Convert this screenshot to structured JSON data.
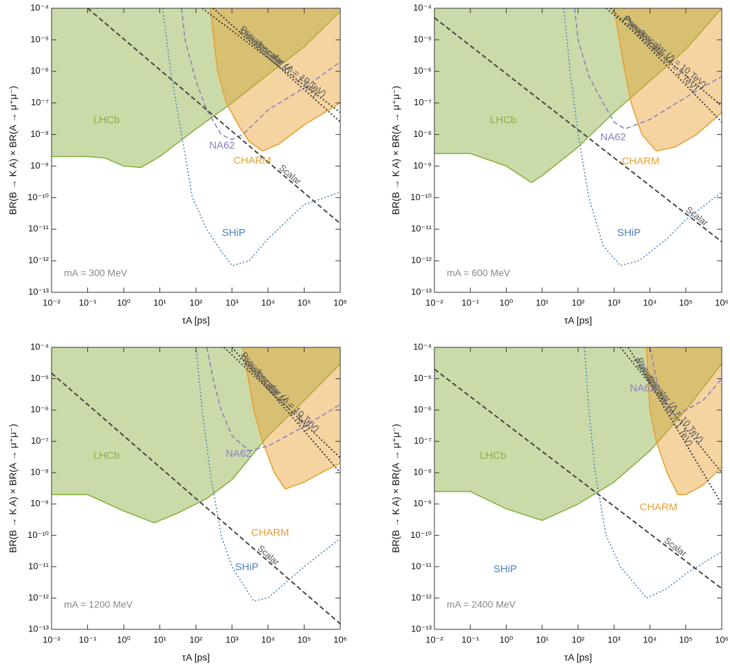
{
  "chart_data": [
    {
      "type": "line",
      "xscale": "log",
      "yscale": "log",
      "xlabel": "τA [ps]",
      "ylabel": "BR(B → K A) × BR(A → μ⁺μ⁻)",
      "annotation": "mA = 300 MeV",
      "xlim": [
        0.01,
        1000000
      ],
      "ylim": [
        1e-13,
        0.0001
      ],
      "xticks": [
        {
          "value": 0.01,
          "label": "10⁻²"
        },
        {
          "value": 0.1,
          "label": "10⁻¹"
        },
        {
          "value": 1,
          "label": "10⁰"
        },
        {
          "value": 10,
          "label": "10¹"
        },
        {
          "value": 100,
          "label": "10²"
        },
        {
          "value": 1000,
          "label": "10³"
        },
        {
          "value": 10000,
          "label": "10⁴"
        },
        {
          "value": 100000,
          "label": "10⁵"
        },
        {
          "value": 1000000,
          "label": "10⁶"
        }
      ],
      "yticks": [
        {
          "value": 1e-13,
          "label": "10⁻¹³"
        },
        {
          "value": 1e-12,
          "label": "10⁻¹²"
        },
        {
          "value": 1e-11,
          "label": "10⁻¹¹"
        },
        {
          "value": 1e-10,
          "label": "10⁻¹⁰"
        },
        {
          "value": 1e-09,
          "label": "10⁻⁹"
        },
        {
          "value": 1e-08,
          "label": "10⁻⁸"
        },
        {
          "value": 1e-07,
          "label": "10⁻⁷"
        },
        {
          "value": 1e-06,
          "label": "10⁻⁶"
        },
        {
          "value": 1e-05,
          "label": "10⁻⁵"
        },
        {
          "value": 0.0001,
          "label": "10⁻⁴"
        }
      ],
      "series": [
        {
          "name": "LHCb",
          "style": "fill",
          "color": "#8ab040",
          "x": [
            0.01,
            0.1,
            0.3,
            1,
            3,
            10,
            100,
            1000,
            10000,
            100000,
            1000000
          ],
          "values": [
            2e-09,
            2e-09,
            1.8e-09,
            1e-09,
            9e-10,
            2e-09,
            1.5e-08,
            1e-07,
            8e-07,
            6e-06,
            8e-05
          ]
        },
        {
          "name": "CHARM",
          "style": "fill",
          "color": "#e8a030",
          "x": [
            250,
            400,
            700,
            1500,
            3000,
            7000,
            20000,
            100000,
            1000000
          ],
          "values": [
            0.0001,
            1e-06,
            1e-07,
            2e-08,
            6e-09,
            3e-09,
            5e-09,
            2e-08,
            1e-07
          ]
        },
        {
          "name": "NA62",
          "style": "dashed",
          "color": "#8a7fc0",
          "x": [
            40,
            50,
            100,
            200,
            500,
            1000,
            2000,
            10000,
            100000,
            1000000
          ],
          "values": [
            0.0001,
            1e-05,
            5e-07,
            6e-08,
            1e-08,
            7e-09,
            1e-08,
            6e-08,
            3e-07,
            2e-06
          ]
        },
        {
          "name": "SHiP",
          "style": "dotted",
          "color": "#4a7fbf",
          "x": [
            12,
            20,
            40,
            80,
            200,
            500,
            1000,
            3000,
            10000,
            100000,
            1000000
          ],
          "values": [
            0.0001,
            1e-06,
            1e-08,
            1e-10,
            1e-11,
            2e-12,
            7e-13,
            1e-12,
            5e-12,
            6e-11,
            1.5e-10
          ]
        },
        {
          "name": "Scalar",
          "style": "dashed",
          "color": "#444444",
          "x": [
            0.1,
            1000000
          ],
          "values": [
            0.0001,
            1.5e-11
          ]
        },
        {
          "name": "Pseudoscalar (Λ = 10 TeV)",
          "style": "dotted",
          "color": "#333333",
          "x": [
            150,
            1000000
          ],
          "values": [
            0.0001,
            5e-08
          ]
        },
        {
          "name": "Pseudoscalar (Λ = 1 TeV)",
          "style": "dotted",
          "color": "#333333",
          "x": [
            300,
            1000000
          ],
          "values": [
            0.0001,
            2.5e-08
          ]
        }
      ]
    },
    {
      "type": "line",
      "xscale": "log",
      "yscale": "log",
      "xlabel": "τA [ps]",
      "ylabel": "BR(B → K A) × BR(A → μ⁺μ⁻)",
      "annotation": "mA = 600 MeV",
      "xlim": [
        0.01,
        1000000
      ],
      "ylim": [
        1e-13,
        0.0001
      ],
      "xticks": [
        {
          "value": 0.01,
          "label": "10⁻²"
        },
        {
          "value": 0.1,
          "label": "10⁻¹"
        },
        {
          "value": 1,
          "label": "10⁰"
        },
        {
          "value": 10,
          "label": "10¹"
        },
        {
          "value": 100,
          "label": "10²"
        },
        {
          "value": 1000,
          "label": "10³"
        },
        {
          "value": 10000,
          "label": "10⁴"
        },
        {
          "value": 100000,
          "label": "10⁵"
        },
        {
          "value": 1000000,
          "label": "10⁶"
        }
      ],
      "yticks": [
        {
          "value": 1e-13,
          "label": "10⁻¹³"
        },
        {
          "value": 1e-12,
          "label": "10⁻¹²"
        },
        {
          "value": 1e-11,
          "label": "10⁻¹¹"
        },
        {
          "value": 1e-10,
          "label": "10⁻¹⁰"
        },
        {
          "value": 1e-09,
          "label": "10⁻⁹"
        },
        {
          "value": 1e-08,
          "label": "10⁻⁸"
        },
        {
          "value": 1e-07,
          "label": "10⁻⁷"
        },
        {
          "value": 1e-06,
          "label": "10⁻⁶"
        },
        {
          "value": 1e-05,
          "label": "10⁻⁵"
        },
        {
          "value": 0.0001,
          "label": "10⁻⁴"
        }
      ],
      "series": [
        {
          "name": "LHCb",
          "style": "fill",
          "color": "#8ab040",
          "x": [
            0.01,
            0.1,
            1,
            5,
            10,
            100,
            1000,
            10000,
            100000,
            1000000
          ],
          "values": [
            2.5e-09,
            2.5e-09,
            1e-09,
            3e-10,
            5e-10,
            4e-09,
            5e-08,
            5e-07,
            5e-06,
            0.0001
          ]
        },
        {
          "name": "CHARM",
          "style": "fill",
          "color": "#e8a030",
          "x": [
            1000,
            2000,
            3000,
            6000,
            15000,
            50000,
            200000,
            1000000
          ],
          "values": [
            0.0001,
            1e-06,
            1e-07,
            1e-08,
            3e-09,
            4e-09,
            1e-08,
            5e-08
          ]
        },
        {
          "name": "NA62",
          "style": "dashed",
          "color": "#8a7fc0",
          "x": [
            80,
            100,
            200,
            500,
            1000,
            2000,
            10000,
            100000,
            1000000
          ],
          "values": [
            0.0001,
            1e-05,
            7e-07,
            1e-07,
            2.5e-08,
            1.5e-08,
            3e-08,
            1.5e-07,
            7e-07
          ]
        },
        {
          "name": "SHiP",
          "style": "dotted",
          "color": "#4a7fbf",
          "x": [
            40,
            60,
            100,
            200,
            500,
            1500,
            5000,
            30000,
            100000,
            1000000
          ],
          "values": [
            0.0001,
            1e-06,
            1e-08,
            1e-10,
            3e-12,
            7e-13,
            1e-12,
            5e-12,
            2e-11,
            1.5e-10
          ]
        },
        {
          "name": "Scalar",
          "style": "dashed",
          "color": "#444444",
          "x": [
            0.01,
            1000000
          ],
          "values": [
            5e-05,
            4e-12
          ]
        },
        {
          "name": "Pseudoscalar (Λ = 10 TeV)",
          "style": "dotted",
          "color": "#333333",
          "x": [
            600,
            1000000
          ],
          "values": [
            0.0001,
            8e-08
          ]
        },
        {
          "name": "Pseudoscalar (Λ = 1 TeV)",
          "style": "dotted",
          "color": "#333333",
          "x": [
            800,
            1000000
          ],
          "values": [
            0.0001,
            2.5e-08
          ]
        }
      ]
    },
    {
      "type": "line",
      "xscale": "log",
      "yscale": "log",
      "xlabel": "τA [ps]",
      "ylabel": "BR(B → K A) × BR(A → μ⁺μ⁻)",
      "annotation": "mA = 1200 MeV",
      "xlim": [
        0.01,
        1000000
      ],
      "ylim": [
        1e-13,
        0.0001
      ],
      "xticks": [
        {
          "value": 0.01,
          "label": "10⁻²"
        },
        {
          "value": 0.1,
          "label": "10⁻¹"
        },
        {
          "value": 1,
          "label": "10⁰"
        },
        {
          "value": 10,
          "label": "10¹"
        },
        {
          "value": 100,
          "label": "10²"
        },
        {
          "value": 1000,
          "label": "10³"
        },
        {
          "value": 10000,
          "label": "10⁴"
        },
        {
          "value": 100000,
          "label": "10⁵"
        },
        {
          "value": 1000000,
          "label": "10⁶"
        }
      ],
      "yticks": [
        {
          "value": 1e-13,
          "label": "10⁻¹³"
        },
        {
          "value": 1e-12,
          "label": "10⁻¹²"
        },
        {
          "value": 1e-11,
          "label": "10⁻¹¹"
        },
        {
          "value": 1e-10,
          "label": "10⁻¹⁰"
        },
        {
          "value": 1e-09,
          "label": "10⁻⁹"
        },
        {
          "value": 1e-08,
          "label": "10⁻⁸"
        },
        {
          "value": 1e-07,
          "label": "10⁻⁷"
        },
        {
          "value": 1e-06,
          "label": "10⁻⁶"
        },
        {
          "value": 1e-05,
          "label": "10⁻⁵"
        },
        {
          "value": 0.0001,
          "label": "10⁻⁴"
        }
      ],
      "series": [
        {
          "name": "LHCb",
          "style": "fill",
          "color": "#8ab040",
          "x": [
            0.01,
            0.1,
            1,
            7,
            30,
            200,
            1000,
            10000,
            100000,
            1000000
          ],
          "values": [
            2e-09,
            2e-09,
            6e-10,
            2.5e-10,
            5e-10,
            1.5e-09,
            6e-09,
            1.5e-07,
            2e-06,
            3e-05
          ]
        },
        {
          "name": "CHARM",
          "style": "fill",
          "color": "#e8a030",
          "x": [
            2000,
            4000,
            7000,
            15000,
            30000,
            100000,
            300000,
            1000000
          ],
          "values": [
            0.0001,
            1e-06,
            1e-07,
            1e-08,
            3e-09,
            5e-09,
            1e-08,
            2e-08
          ]
        },
        {
          "name": "NA62",
          "style": "dashed",
          "color": "#8a7fc0",
          "x": [
            200,
            300,
            500,
            1000,
            3000,
            10000,
            100000,
            1000000
          ],
          "values": [
            0.0001,
            1e-05,
            1e-06,
            1.5e-07,
            5e-08,
            7e-08,
            3e-07,
            1.5e-06
          ]
        },
        {
          "name": "SHiP",
          "style": "dotted",
          "color": "#4a7fbf",
          "x": [
            100,
            150,
            250,
            500,
            1000,
            4000,
            10000,
            100000,
            1000000
          ],
          "values": [
            0.0001,
            1e-06,
            1e-08,
            1e-10,
            1e-11,
            8e-13,
            1e-12,
            1e-11,
            8e-11
          ]
        },
        {
          "name": "Scalar",
          "style": "dashed",
          "color": "#444444",
          "x": [
            0.01,
            1000000
          ],
          "values": [
            1.5e-05,
            1.5e-13
          ]
        },
        {
          "name": "Pseudoscalar (Λ = 10 TeV)",
          "style": "dotted",
          "color": "#333333",
          "x": [
            600,
            1000000
          ],
          "values": [
            0.0001,
            3e-08
          ]
        },
        {
          "name": "Pseudoscalar (Λ = 1 TeV)",
          "style": "dotted",
          "color": "#333333",
          "x": [
            1000,
            1000000
          ],
          "values": [
            0.0001,
            1e-08
          ]
        }
      ]
    },
    {
      "type": "line",
      "xscale": "log",
      "yscale": "log",
      "xlabel": "τA [ps]",
      "ylabel": "BR(B → K A) × BR(A → μ⁺μ⁻)",
      "annotation": "mA = 2400 MeV",
      "xlim": [
        0.01,
        1000000
      ],
      "ylim": [
        1e-13,
        0.0001
      ],
      "xticks": [
        {
          "value": 0.01,
          "label": "10⁻²"
        },
        {
          "value": 0.1,
          "label": "10⁻¹"
        },
        {
          "value": 1,
          "label": "10⁰"
        },
        {
          "value": 10,
          "label": "10¹"
        },
        {
          "value": 100,
          "label": "10²"
        },
        {
          "value": 1000,
          "label": "10³"
        },
        {
          "value": 10000,
          "label": "10⁴"
        },
        {
          "value": 100000,
          "label": "10⁵"
        },
        {
          "value": 1000000,
          "label": "10⁶"
        }
      ],
      "yticks": [
        {
          "value": 1e-13,
          "label": "10⁻¹³"
        },
        {
          "value": 1e-12,
          "label": "10⁻¹²"
        },
        {
          "value": 1e-11,
          "label": "10⁻¹¹"
        },
        {
          "value": 1e-10,
          "label": "10⁻¹⁰"
        },
        {
          "value": 1e-09,
          "label": "10⁻⁹"
        },
        {
          "value": 1e-08,
          "label": "10⁻⁸"
        },
        {
          "value": 1e-07,
          "label": "10⁻⁷"
        },
        {
          "value": 1e-06,
          "label": "10⁻⁶"
        },
        {
          "value": 1e-05,
          "label": "10⁻⁵"
        },
        {
          "value": 0.0001,
          "label": "10⁻⁴"
        }
      ],
      "series": [
        {
          "name": "LHCb",
          "style": "fill",
          "color": "#8ab040",
          "x": [
            0.01,
            0.1,
            1,
            10,
            100,
            1000,
            10000,
            100000,
            1000000
          ],
          "values": [
            2.5e-09,
            2.5e-09,
            7e-10,
            3e-10,
            1e-09,
            5e-09,
            5e-08,
            1e-06,
            3e-05
          ]
        },
        {
          "name": "CHARM",
          "style": "fill",
          "color": "#e8a030",
          "x": [
            8000,
            10000,
            15000,
            30000,
            60000,
            100000,
            300000,
            1000000
          ],
          "values": [
            0.0001,
            1e-06,
            1e-07,
            1e-08,
            2e-09,
            2e-09,
            4e-09,
            1.5e-08
          ]
        },
        {
          "name": "NA62",
          "style": "dashed",
          "color": "#8a7fc0",
          "x": [
            10000,
            15000,
            30000,
            50000,
            100000,
            300000,
            1000000
          ],
          "values": [
            0.0001,
            1e-05,
            1e-06,
            7e-07,
            1e-06,
            2e-06,
            1e-05
          ]
        },
        {
          "name": "SHiP",
          "style": "dotted",
          "color": "#4a7fbf",
          "x": [
            150,
            200,
            300,
            600,
            1500,
            8000,
            30000,
            100000,
            1000000
          ],
          "values": [
            0.0001,
            1e-06,
            1e-08,
            1e-10,
            1e-11,
            1e-12,
            2e-12,
            6e-12,
            3e-11
          ]
        },
        {
          "name": "Scalar",
          "style": "dashed",
          "color": "#444444",
          "x": [
            0.01,
            1000000
          ],
          "values": [
            2e-05,
            2e-12
          ]
        },
        {
          "name": "Pseudoscalar (Λ = 10 TeV)",
          "style": "dotted",
          "color": "#333333",
          "x": [
            1500,
            1000000
          ],
          "values": [
            0.0001,
            1e-08
          ]
        },
        {
          "name": "Pseudoscalar (Λ = 1 TeV)",
          "style": "dotted",
          "color": "#333333",
          "x": [
            2500,
            1000000
          ],
          "values": [
            0.0001,
            1e-09
          ]
        }
      ]
    }
  ]
}
